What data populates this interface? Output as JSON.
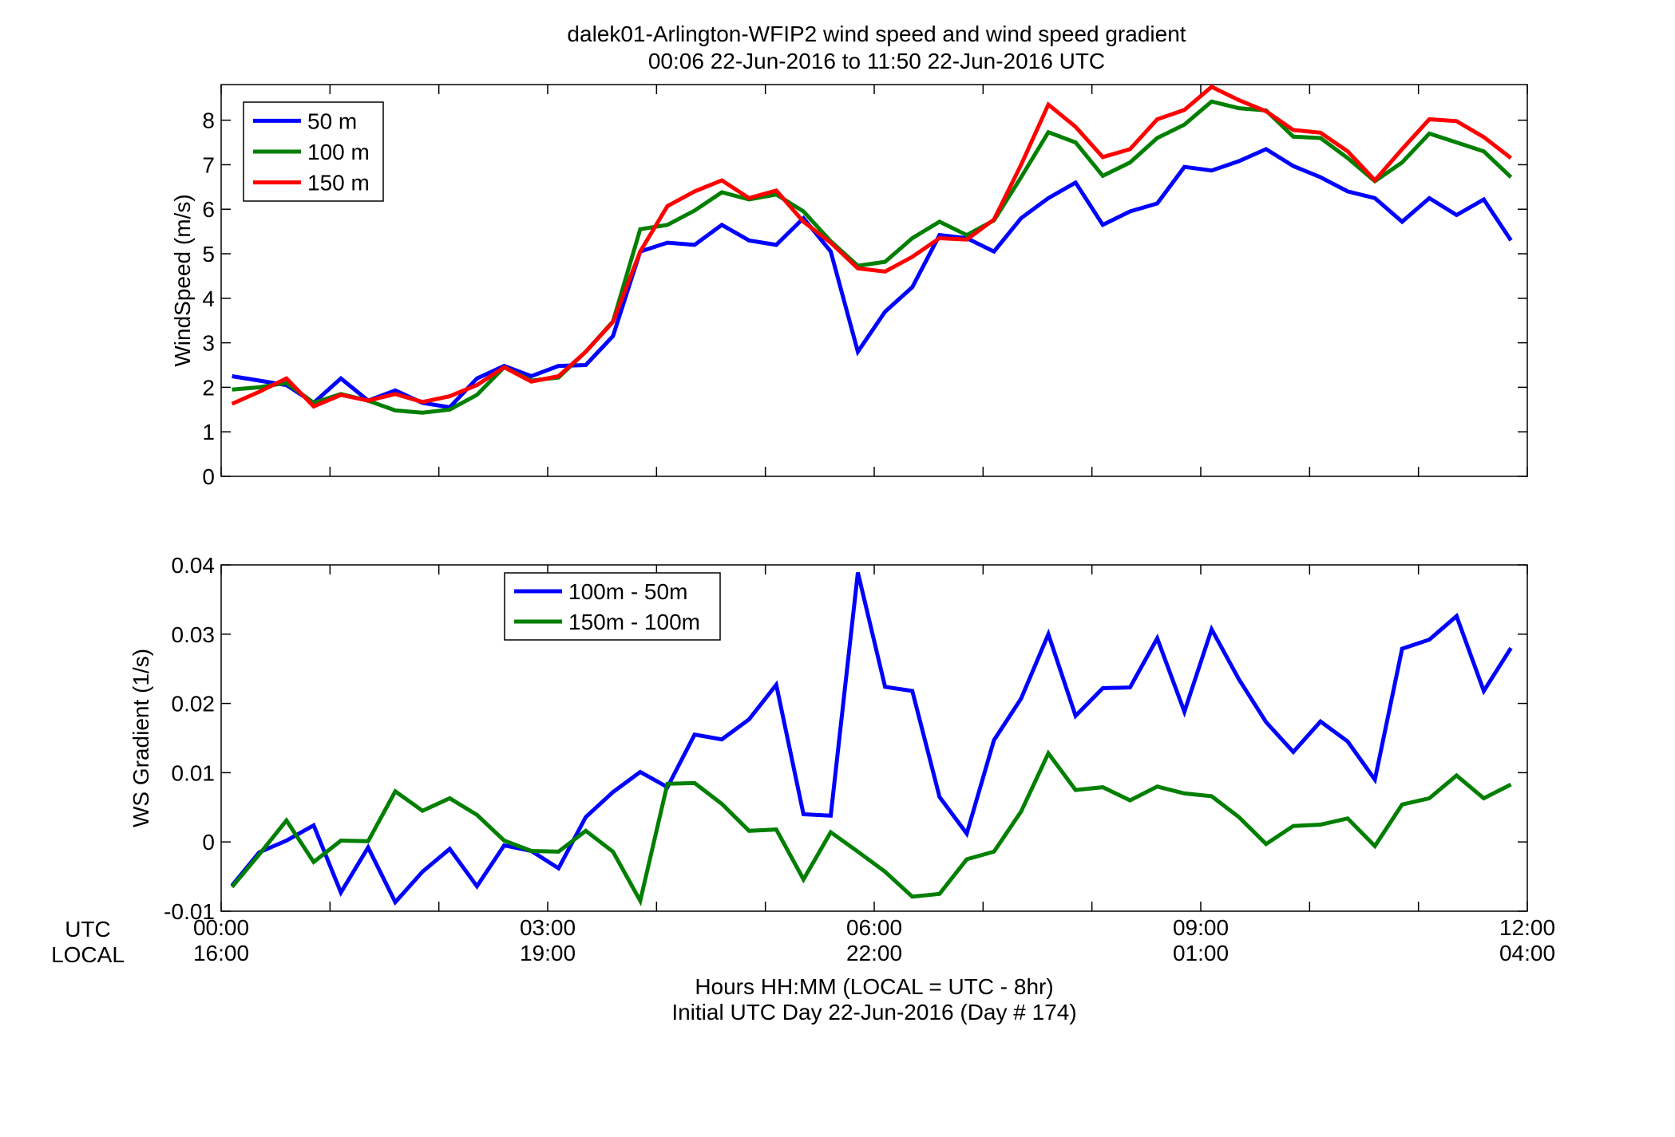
{
  "title_line1": "dalek01-Arlington-WFIP2  wind speed and wind speed gradient",
  "title_line2": "00:06 22-Jun-2016 to 11:50 22-Jun-2016  UTC",
  "xaxis": {
    "utc_label": "UTC",
    "local_label": "LOCAL",
    "xlabel_line1": "Hours HH:MM  (LOCAL = UTC - 8hr)",
    "xlabel_line2": "Initial UTC Day 22-Jun-2016 (Day # 174)",
    "utc_ticks": [
      "00:00",
      "03:00",
      "06:00",
      "09:00",
      "12:00"
    ],
    "local_ticks": [
      "16:00",
      "19:00",
      "22:00",
      "01:00",
      "04:00"
    ]
  },
  "chart_data": [
    {
      "type": "line",
      "ylabel": "WindSpeed (m/s)",
      "xlim": [
        0,
        12
      ],
      "ylim": [
        0,
        8.8
      ],
      "yticks": [
        0,
        1,
        2,
        3,
        4,
        5,
        6,
        7,
        8
      ],
      "xticks": [
        0,
        1,
        2,
        3,
        4,
        5,
        6,
        7,
        8,
        9,
        10,
        11,
        12
      ],
      "grid": false,
      "legend": "top-left",
      "x": [
        0.1,
        0.35,
        0.6,
        0.85,
        1.1,
        1.35,
        1.6,
        1.85,
        2.1,
        2.35,
        2.6,
        2.85,
        3.1,
        3.35,
        3.6,
        3.85,
        4.1,
        4.35,
        4.6,
        4.85,
        5.1,
        5.35,
        5.6,
        5.85,
        6.1,
        6.35,
        6.6,
        6.85,
        7.1,
        7.35,
        7.6,
        7.85,
        8.1,
        8.35,
        8.6,
        8.85,
        9.1,
        9.35,
        9.6,
        9.85,
        10.1,
        10.35,
        10.6,
        10.85,
        11.1,
        11.35,
        11.6,
        11.85
      ],
      "series": [
        {
          "name": "50 m",
          "color": "#0000ff",
          "values": [
            2.25,
            2.15,
            2.05,
            1.65,
            2.2,
            1.7,
            1.93,
            1.65,
            1.55,
            2.2,
            2.48,
            2.25,
            2.48,
            2.5,
            3.15,
            5.05,
            5.25,
            5.2,
            5.65,
            5.3,
            5.2,
            5.8,
            5.05,
            2.8,
            3.7,
            4.25,
            5.42,
            5.35,
            5.05,
            5.8,
            6.25,
            6.6,
            5.65,
            5.95,
            6.13,
            6.95,
            6.87,
            7.08,
            7.35,
            6.97,
            6.72,
            6.4,
            6.25,
            5.72,
            6.25,
            5.87,
            6.22,
            5.3
          ]
        },
        {
          "name": "100 m",
          "color": "#007f00",
          "values": [
            1.95,
            2.0,
            2.1,
            1.65,
            1.85,
            1.7,
            1.48,
            1.43,
            1.5,
            1.83,
            2.45,
            2.15,
            2.22,
            2.8,
            3.48,
            5.55,
            5.65,
            5.97,
            6.38,
            6.22,
            6.33,
            5.95,
            5.28,
            4.73,
            4.82,
            5.35,
            5.72,
            5.42,
            5.75,
            6.72,
            7.73,
            7.5,
            6.75,
            7.05,
            7.6,
            7.9,
            8.42,
            8.27,
            8.22,
            7.63,
            7.6,
            7.15,
            6.63,
            7.05,
            7.7,
            7.5,
            7.3,
            6.72
          ]
        },
        {
          "name": "150 m",
          "color": "#ff0000",
          "values": [
            1.63,
            1.9,
            2.2,
            1.57,
            1.83,
            1.7,
            1.85,
            1.67,
            1.8,
            2.05,
            2.45,
            2.13,
            2.25,
            2.8,
            3.47,
            5.05,
            6.07,
            6.4,
            6.65,
            6.25,
            6.42,
            5.72,
            5.25,
            4.67,
            4.6,
            4.93,
            5.35,
            5.32,
            5.77,
            7.0,
            8.35,
            7.85,
            7.17,
            7.35,
            8.02,
            8.23,
            8.75,
            8.45,
            8.2,
            7.78,
            7.72,
            7.3,
            6.65,
            7.35,
            8.02,
            7.98,
            7.62,
            7.15
          ]
        }
      ]
    },
    {
      "type": "line",
      "ylabel": "WS Gradient (1/s)",
      "xlim": [
        0,
        12
      ],
      "ylim": [
        -0.01,
        0.04
      ],
      "yticks": [
        -0.01,
        0,
        0.01,
        0.02,
        0.03,
        0.04
      ],
      "ytick_labels": [
        "-0.01",
        "0",
        "0.01",
        "0.02",
        "0.03",
        "0.04"
      ],
      "xticks": [
        0,
        1,
        2,
        3,
        4,
        5,
        6,
        7,
        8,
        9,
        10,
        11,
        12
      ],
      "grid": false,
      "legend": "top-center",
      "x": [
        0.1,
        0.35,
        0.6,
        0.85,
        1.1,
        1.35,
        1.6,
        1.85,
        2.1,
        2.35,
        2.6,
        2.85,
        3.1,
        3.35,
        3.6,
        3.85,
        4.1,
        4.35,
        4.6,
        4.85,
        5.1,
        5.35,
        5.6,
        5.85,
        6.1,
        6.35,
        6.6,
        6.85,
        7.1,
        7.35,
        7.6,
        7.85,
        8.1,
        8.35,
        8.6,
        8.85,
        9.1,
        9.35,
        9.6,
        9.85,
        10.1,
        10.35,
        10.6,
        10.85,
        11.1,
        11.35,
        11.6,
        11.85
      ],
      "series": [
        {
          "name": "100m - 50m",
          "color": "#0000ff",
          "values": [
            -0.0063,
            -0.0015,
            0.0002,
            0.0024,
            -0.0073,
            -0.0008,
            -0.0087,
            -0.0043,
            -0.001,
            -0.0064,
            -0.0005,
            -0.0013,
            -0.0038,
            0.0036,
            0.0072,
            0.0101,
            0.0079,
            0.0155,
            0.0148,
            0.0177,
            0.0227,
            0.004,
            0.0038,
            0.0389,
            0.0224,
            0.0218,
            0.0065,
            0.0012,
            0.0147,
            0.0207,
            0.03,
            0.0182,
            0.0222,
            0.0223,
            0.0294,
            0.0188,
            0.0307,
            0.0235,
            0.0173,
            0.013,
            0.0174,
            0.0145,
            0.009,
            0.0279,
            0.0292,
            0.0326,
            0.0218,
            0.028
          ]
        },
        {
          "name": "150m - 100m",
          "color": "#007f00",
          "values": [
            -0.0065,
            -0.0018,
            0.0031,
            -0.0029,
            0.0002,
            0.0001,
            0.0073,
            0.0045,
            0.0063,
            0.0039,
            0.0002,
            -0.0013,
            -0.0014,
            0.0016,
            -0.0014,
            -0.0085,
            0.0084,
            0.0085,
            0.0055,
            0.0016,
            0.0018,
            -0.0054,
            0.0014,
            -0.0014,
            -0.0043,
            -0.0079,
            -0.0075,
            -0.0025,
            -0.0014,
            0.0044,
            0.0128,
            0.0075,
            0.0079,
            0.006,
            0.008,
            0.007,
            0.0066,
            0.0036,
            -0.0003,
            0.0023,
            0.0025,
            0.0034,
            -0.0006,
            0.0054,
            0.0063,
            0.0096,
            0.0063,
            0.0083
          ]
        }
      ]
    }
  ]
}
